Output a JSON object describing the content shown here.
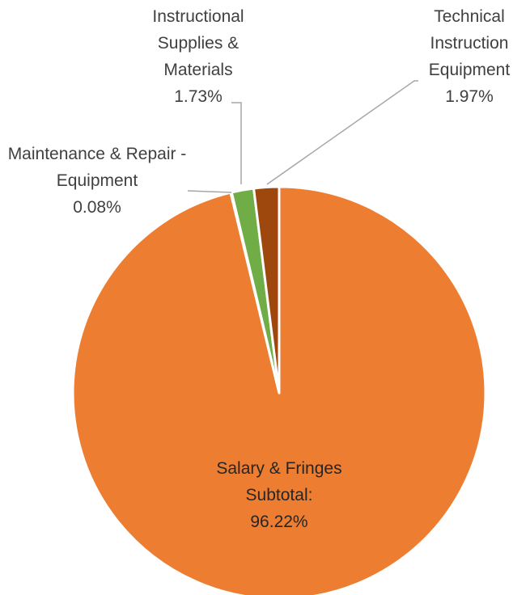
{
  "chart_data": {
    "type": "pie",
    "categories": [
      "Salary & Fringes Subtotal:",
      "Maintenance & Repair -Equipment",
      "Instructional Supplies & Materials",
      "Technical Instruction Equipment"
    ],
    "values": [
      96.22,
      0.08,
      1.73,
      1.97
    ],
    "value_labels": [
      "96.22%",
      "0.08%",
      "1.73%",
      "1.97%"
    ],
    "colors": [
      "#ed7d31",
      "#a5a5a5",
      "#70ad47",
      "#9e480e"
    ]
  }
}
